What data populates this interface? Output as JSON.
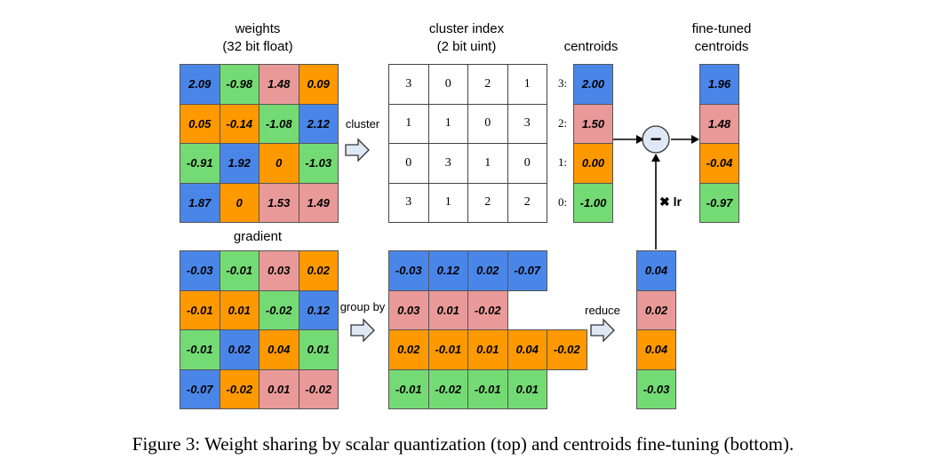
{
  "colors": {
    "blue": "#4a86e8",
    "green": "#74db74",
    "pink": "#ea9999",
    "orange": "#ff9900"
  },
  "labels": {
    "weights_title_1": "weights",
    "weights_title_2": "(32 bit float)",
    "cluster_index_title_1": "cluster index",
    "cluster_index_title_2": "(2 bit uint)",
    "centroids_title": "centroids",
    "fine_tuned_title_1": "fine-tuned",
    "fine_tuned_title_2": "centroids",
    "gradient_title": "gradient",
    "cluster_arrow": "cluster",
    "group_by_arrow": "group by",
    "reduce_arrow": "reduce",
    "lr_label": "✖ lr",
    "minus_symbol": "−"
  },
  "weights": [
    [
      {
        "v": "2.09",
        "c": "blue"
      },
      {
        "v": "-0.98",
        "c": "green"
      },
      {
        "v": "1.48",
        "c": "pink"
      },
      {
        "v": "0.09",
        "c": "orange"
      }
    ],
    [
      {
        "v": "0.05",
        "c": "orange"
      },
      {
        "v": "-0.14",
        "c": "orange"
      },
      {
        "v": "-1.08",
        "c": "green"
      },
      {
        "v": "2.12",
        "c": "blue"
      }
    ],
    [
      {
        "v": "-0.91",
        "c": "green"
      },
      {
        "v": "1.92",
        "c": "blue"
      },
      {
        "v": "0",
        "c": "orange"
      },
      {
        "v": "-1.03",
        "c": "green"
      }
    ],
    [
      {
        "v": "1.87",
        "c": "blue"
      },
      {
        "v": "0",
        "c": "orange"
      },
      {
        "v": "1.53",
        "c": "pink"
      },
      {
        "v": "1.49",
        "c": "pink"
      }
    ]
  ],
  "cluster_index": [
    [
      "3",
      "0",
      "2",
      "1"
    ],
    [
      "1",
      "1",
      "0",
      "3"
    ],
    [
      "0",
      "3",
      "1",
      "0"
    ],
    [
      "3",
      "1",
      "2",
      "2"
    ]
  ],
  "centroids": [
    {
      "label": "3:",
      "v": "2.00",
      "c": "blue"
    },
    {
      "label": "2:",
      "v": "1.50",
      "c": "pink"
    },
    {
      "label": "1:",
      "v": "0.00",
      "c": "orange"
    },
    {
      "label": "0:",
      "v": "-1.00",
      "c": "green"
    }
  ],
  "fine_tuned_centroids": [
    {
      "v": "1.96",
      "c": "blue"
    },
    {
      "v": "1.48",
      "c": "pink"
    },
    {
      "v": "-0.04",
      "c": "orange"
    },
    {
      "v": "-0.97",
      "c": "green"
    }
  ],
  "gradient": [
    [
      {
        "v": "-0.03",
        "c": "blue"
      },
      {
        "v": "-0.01",
        "c": "green"
      },
      {
        "v": "0.03",
        "c": "pink"
      },
      {
        "v": "0.02",
        "c": "orange"
      }
    ],
    [
      {
        "v": "-0.01",
        "c": "orange"
      },
      {
        "v": "0.01",
        "c": "orange"
      },
      {
        "v": "-0.02",
        "c": "green"
      },
      {
        "v": "0.12",
        "c": "blue"
      }
    ],
    [
      {
        "v": "-0.01",
        "c": "green"
      },
      {
        "v": "0.02",
        "c": "blue"
      },
      {
        "v": "0.04",
        "c": "orange"
      },
      {
        "v": "0.01",
        "c": "green"
      }
    ],
    [
      {
        "v": "-0.07",
        "c": "blue"
      },
      {
        "v": "-0.02",
        "c": "orange"
      },
      {
        "v": "0.01",
        "c": "pink"
      },
      {
        "v": "-0.02",
        "c": "pink"
      }
    ]
  ],
  "grouped": [
    {
      "c": "blue",
      "values": [
        "-0.03",
        "0.12",
        "0.02",
        "-0.07"
      ]
    },
    {
      "c": "pink",
      "values": [
        "0.03",
        "0.01",
        "-0.02"
      ]
    },
    {
      "c": "orange",
      "values": [
        "0.02",
        "-0.01",
        "0.01",
        "0.04",
        "-0.02"
      ]
    },
    {
      "c": "green",
      "values": [
        "-0.01",
        "-0.02",
        "-0.01",
        "0.01"
      ]
    }
  ],
  "reduced": [
    {
      "v": "0.04",
      "c": "blue"
    },
    {
      "v": "0.02",
      "c": "pink"
    },
    {
      "v": "0.04",
      "c": "orange"
    },
    {
      "v": "-0.03",
      "c": "green"
    }
  ],
  "caption": "Figure 3: Weight sharing by scalar quantization (top) and centroids fine-tuning (bottom)."
}
